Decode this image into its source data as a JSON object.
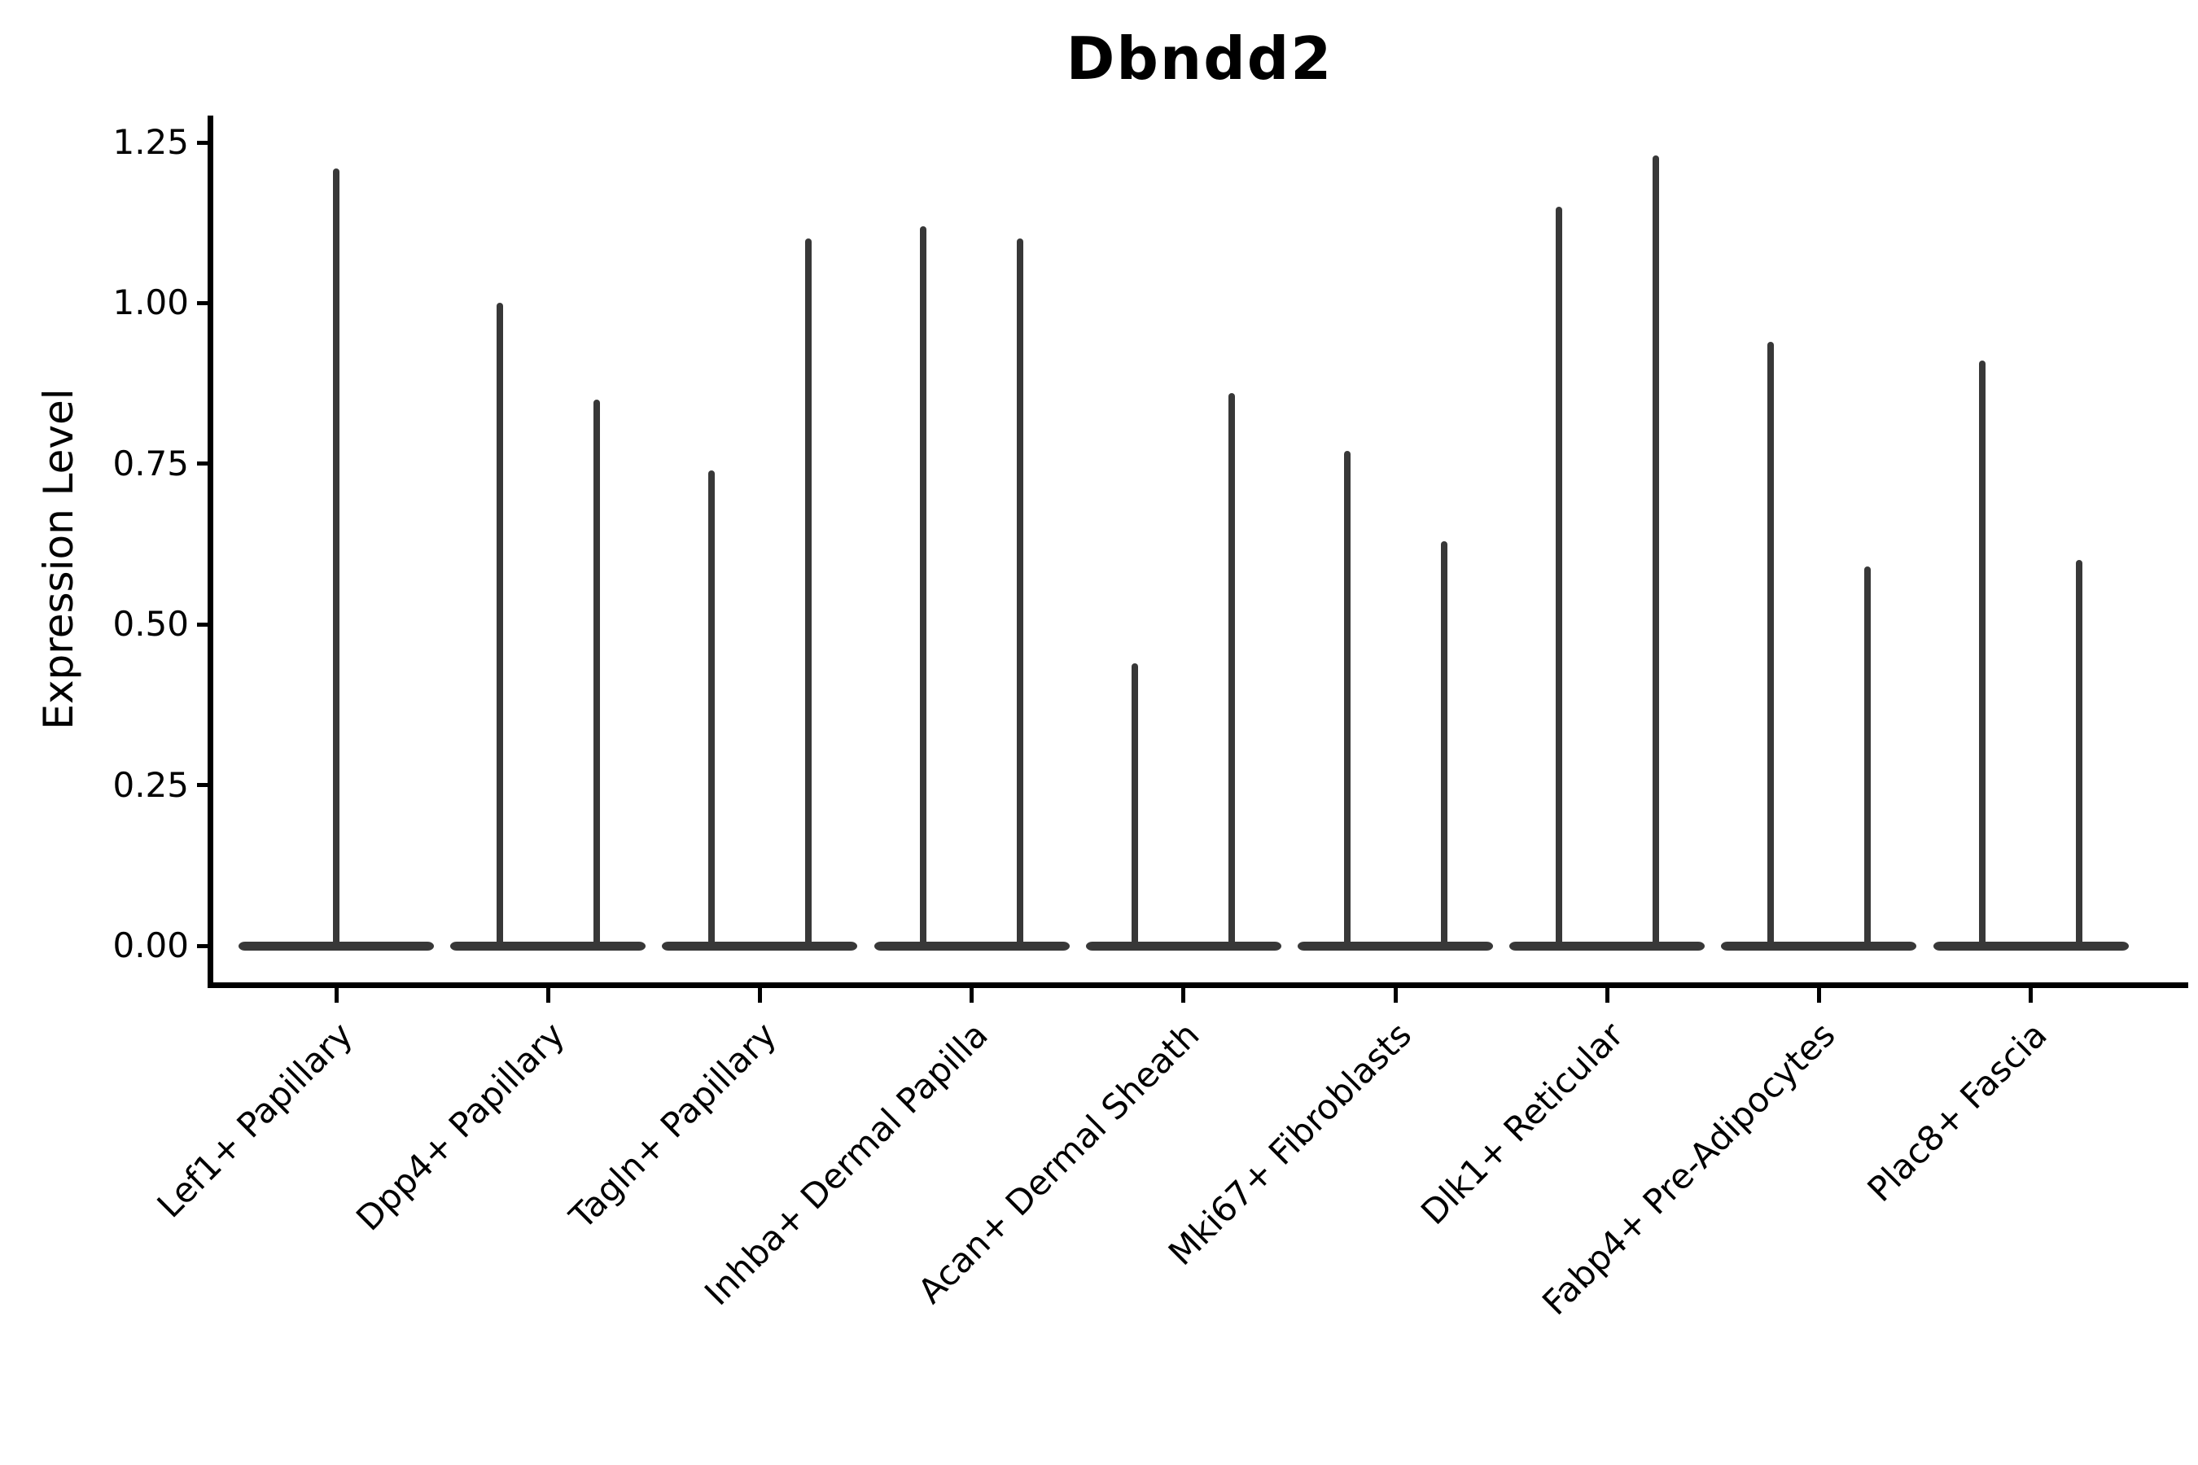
{
  "title": "Dbndd2",
  "y_axis_label": "Expression Level",
  "chart_data": {
    "type": "violin",
    "title": "Dbndd2",
    "xlabel": "",
    "ylabel": "Expression Level",
    "ylim": [
      -0.06,
      1.29
    ],
    "grid": false,
    "legend_position": "none",
    "violin_color": "#383838",
    "ytick_labels": [
      "0.00",
      "0.25",
      "0.50",
      "0.75",
      "1.00",
      "1.25"
    ],
    "ytick_values": [
      0.0,
      0.25,
      0.5,
      0.75,
      1.0,
      1.25
    ],
    "shape_note": "zero-inflated expression violins: each category shows a wide flattened density blob at 0 and thin vertical density spikes reaching the maximum expression value",
    "categories": [
      "Lef1+ Papillary",
      "Dpp4+ Papillary",
      "Tagln+ Papillary",
      "Inhba+ Dermal Papilla",
      "Acan+ Dermal Sheath",
      "Mki67+ Fibroblasts",
      "Dlk1+ Reticular",
      "Fabp4+ Pre-Adipocytes",
      "Plac8+ Fascia"
    ],
    "spike_max_values": [
      [
        1.21
      ],
      [
        1.0,
        0.85
      ],
      [
        0.74,
        1.1
      ],
      [
        1.12,
        1.1
      ],
      [
        0.44,
        0.86
      ],
      [
        0.77,
        0.63
      ],
      [
        1.15,
        1.23
      ],
      [
        0.94,
        0.59
      ],
      [
        0.91,
        0.6
      ]
    ]
  }
}
